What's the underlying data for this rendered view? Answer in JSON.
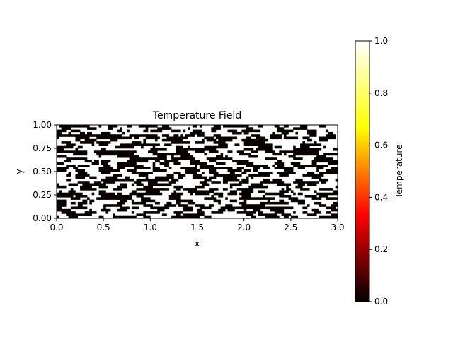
{
  "chart_data": {
    "type": "heatmap",
    "title": "Temperature Field",
    "xlabel": "x",
    "ylabel": "y",
    "xlim": [
      0,
      3
    ],
    "ylim": [
      0,
      1
    ],
    "x_ticks": [
      "0.0",
      "0.5",
      "1.0",
      "1.5",
      "2.0",
      "2.5",
      "3.0"
    ],
    "y_ticks": [
      "0.00",
      "0.25",
      "0.50",
      "0.75",
      "1.00"
    ],
    "grid_shape": [
      40,
      120
    ],
    "value_range": [
      0,
      1
    ],
    "colormap": "hot",
    "colormap_stops": [
      "#000000",
      "#ff0000",
      "#ffff00",
      "#ffffff"
    ],
    "colorbar": {
      "label": "Temperature",
      "ticks": [
        "0.0",
        "0.2",
        "0.4",
        "0.6",
        "0.8",
        "1.0"
      ]
    },
    "cell_hot_color": "#ffffff",
    "cell_cold_color": "#000000",
    "cold_cell_color": "#080000",
    "grid": false
  }
}
